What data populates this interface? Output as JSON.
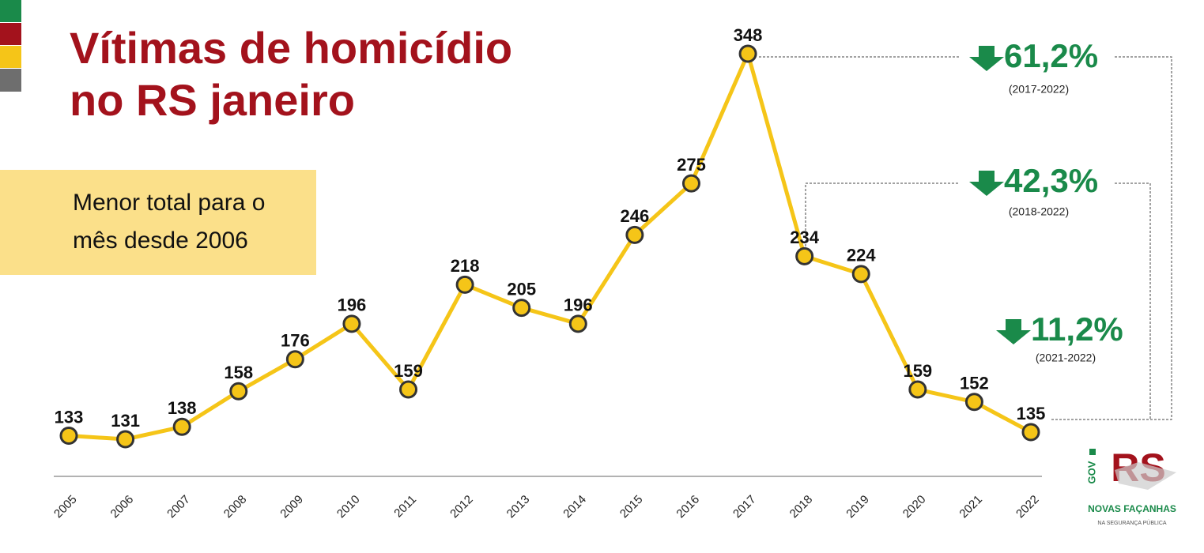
{
  "title": "Vítimas de homicídio no RS janeiro",
  "highlight": "Menor total para o mês desde 2006",
  "chart_data": {
    "type": "line",
    "categories": [
      "2005",
      "2006",
      "2007",
      "2008",
      "2009",
      "2010",
      "2011",
      "2012",
      "2013",
      "2014",
      "2015",
      "2016",
      "2017",
      "2018",
      "2019",
      "2020",
      "2021",
      "2022"
    ],
    "values": [
      133,
      131,
      138,
      158,
      176,
      196,
      159,
      218,
      205,
      196,
      246,
      275,
      348,
      234,
      224,
      159,
      152,
      135
    ],
    "color": "#f5c518",
    "annotations": [
      {
        "text": "61,2%",
        "period": "(2017-2022)"
      },
      {
        "text": "42,3%",
        "period": "(2018-2022)"
      },
      {
        "text": "11,2%",
        "period": "(2021-2022)"
      }
    ]
  },
  "logo": {
    "gov": "GOV",
    "rs": "RS",
    "name": "NOVAS FAÇANHAS",
    "sub": "NA SEGURANÇA PÚBLICA"
  }
}
